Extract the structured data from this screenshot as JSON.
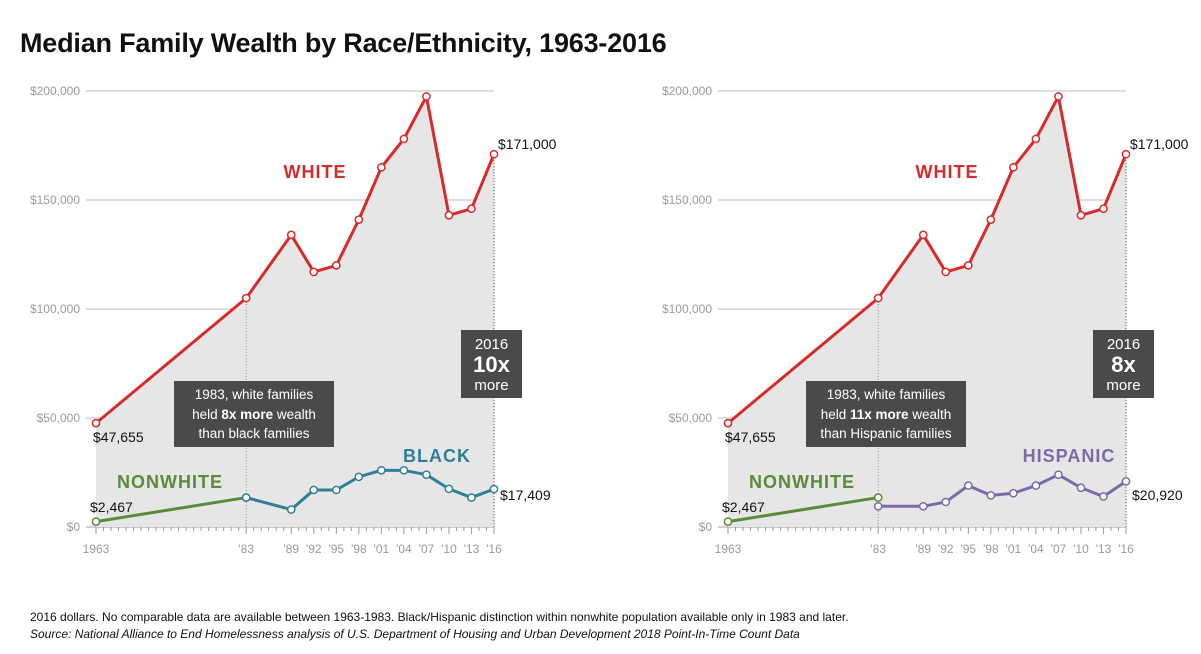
{
  "title": "Median Family Wealth by Race/Ethnicity, 1963-2016",
  "footnote": "2016 dollars. No comparable data are available between 1963-1983. Black/Hispanic distinction within nonwhite population available only in 1983 and later.",
  "source": "Source: National Alliance to End Homelessness analysis of U.S. Department of Housing and Urban Development 2018 Point-In-Time Count Data",
  "colors": {
    "white": "#d62b2b",
    "nonwhite": "#5a8a3a",
    "black": "#2f7f96",
    "hispanic": "#7b6aa8",
    "area": "#e6e6e6",
    "box": "#4a4a4a"
  },
  "chart_data": [
    {
      "type": "line",
      "ylim": [
        0,
        200000
      ],
      "y_ticks": [
        0,
        50000,
        100000,
        150000,
        200000
      ],
      "y_tick_labels": [
        "$0",
        "$50,000",
        "$100,000",
        "$150,000",
        "$200,000"
      ],
      "x_ticks": [
        1963,
        1983,
        1989,
        1992,
        1995,
        1998,
        2001,
        2004,
        2007,
        2010,
        2013,
        2016
      ],
      "x_tick_labels": [
        "1963",
        "'83",
        "'89",
        "'92",
        "'95",
        "'98",
        "'01",
        "'04",
        "'07",
        "'10",
        "'13",
        "'16"
      ],
      "series": [
        {
          "name": "WHITE",
          "color": "#d62b2b",
          "x": [
            1963,
            1983,
            1989,
            1992,
            1995,
            1998,
            2001,
            2004,
            2007,
            2010,
            2013,
            2016
          ],
          "values": [
            47655,
            105000,
            134000,
            117000,
            120000,
            141000,
            165000,
            178000,
            197500,
            143000,
            146000,
            171000
          ]
        },
        {
          "name": "NONWHITE",
          "color": "#5a8a3a",
          "x": [
            1963,
            1983
          ],
          "values": [
            2467,
            13500
          ]
        },
        {
          "name": "BLACK",
          "color": "#2f7f96",
          "x": [
            1983,
            1989,
            1992,
            1995,
            1998,
            2001,
            2004,
            2007,
            2010,
            2013,
            2016
          ],
          "values": [
            13500,
            8000,
            17000,
            17000,
            23000,
            26000,
            26000,
            24000,
            17500,
            13500,
            17409
          ]
        }
      ],
      "value_labels": {
        "white_start": "$47,655",
        "white_end": "$171,000",
        "nonwhite_start": "$2,467",
        "group_end": "$17,409"
      },
      "series_labels": {
        "white": "WHITE",
        "nonwhite": "NONWHITE",
        "group": "BLACK"
      },
      "box_1983": {
        "pre": "1983, white families",
        "mid_a": "held ",
        "bold": "8x more",
        "mid_b": " wealth",
        "line3": "than black families"
      },
      "box_2016": {
        "year": "2016",
        "mult": "10x",
        "word": "more"
      }
    },
    {
      "type": "line",
      "ylim": [
        0,
        200000
      ],
      "y_ticks": [
        0,
        50000,
        100000,
        150000,
        200000
      ],
      "y_tick_labels": [
        "$0",
        "$50,000",
        "$100,000",
        "$150,000",
        "$200,000"
      ],
      "x_ticks": [
        1963,
        1983,
        1989,
        1992,
        1995,
        1998,
        2001,
        2004,
        2007,
        2010,
        2013,
        2016
      ],
      "x_tick_labels": [
        "1963",
        "'83",
        "'89",
        "'92",
        "'95",
        "'98",
        "'01",
        "'04",
        "'07",
        "'10",
        "'13",
        "'16"
      ],
      "series": [
        {
          "name": "WHITE",
          "color": "#d62b2b",
          "x": [
            1963,
            1983,
            1989,
            1992,
            1995,
            1998,
            2001,
            2004,
            2007,
            2010,
            2013,
            2016
          ],
          "values": [
            47655,
            105000,
            134000,
            117000,
            120000,
            141000,
            165000,
            178000,
            197500,
            143000,
            146000,
            171000
          ]
        },
        {
          "name": "NONWHITE",
          "color": "#5a8a3a",
          "x": [
            1963,
            1983
          ],
          "values": [
            2467,
            13500
          ]
        },
        {
          "name": "HISPANIC",
          "color": "#7b6aa8",
          "x": [
            1983,
            1989,
            1992,
            1995,
            1998,
            2001,
            2004,
            2007,
            2010,
            2013,
            2016
          ],
          "values": [
            9500,
            9500,
            11500,
            19000,
            14500,
            15500,
            19000,
            24000,
            18000,
            14000,
            20920
          ]
        }
      ],
      "value_labels": {
        "white_start": "$47,655",
        "white_end": "$171,000",
        "nonwhite_start": "$2,467",
        "group_end": "$20,920"
      },
      "series_labels": {
        "white": "WHITE",
        "nonwhite": "NONWHITE",
        "group": "HISPANIC"
      },
      "box_1983": {
        "pre": "1983, white families",
        "mid_a": "held ",
        "bold": "11x more",
        "mid_b": " wealth",
        "line3": "than Hispanic families"
      },
      "box_2016": {
        "year": "2016",
        "mult": "8x",
        "word": "more"
      }
    }
  ]
}
